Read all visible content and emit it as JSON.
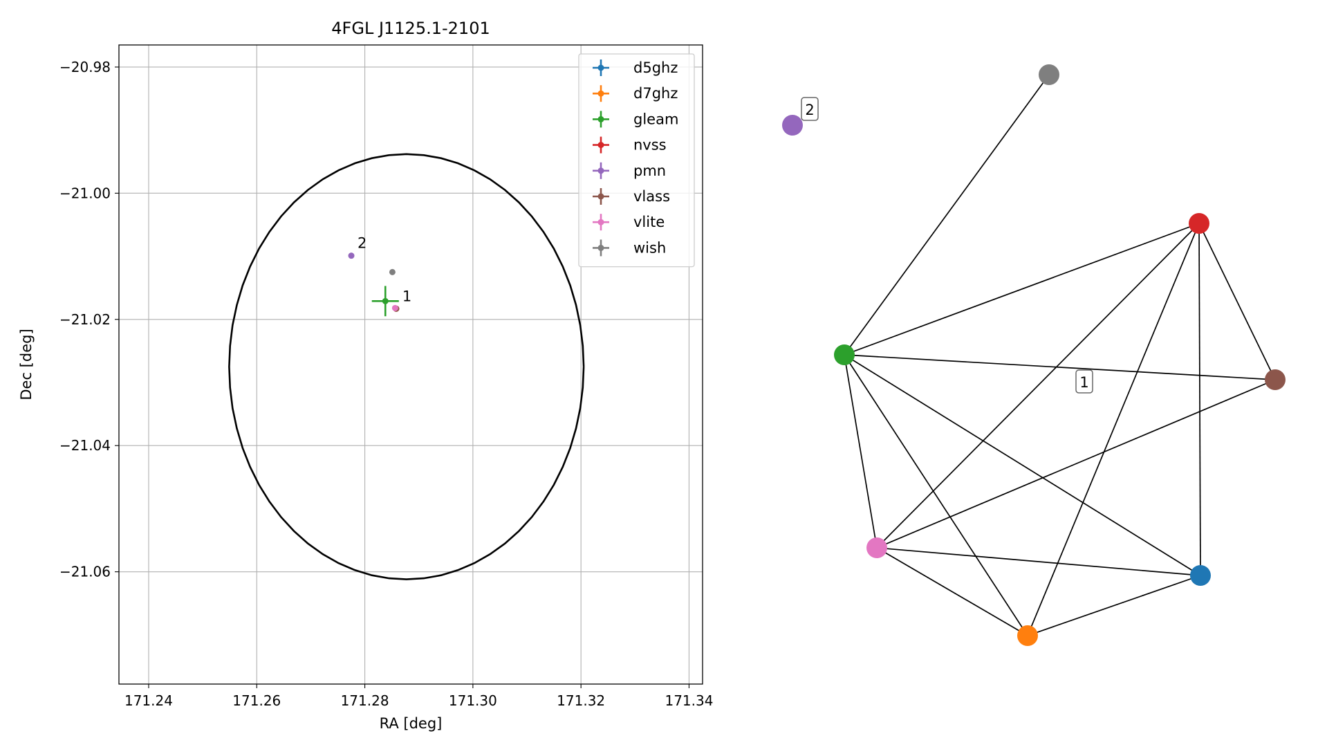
{
  "chart_data": [
    {
      "type": "scatter",
      "title": "4FGL J1125.1-2101",
      "xlabel": "RA [deg]",
      "ylabel": "Dec [deg]",
      "xlim": [
        171.2345,
        171.3425
      ],
      "ylim": [
        -21.0778,
        -20.9765
      ],
      "xticks": [
        171.24,
        171.26,
        171.28,
        171.3,
        171.32,
        171.34
      ],
      "xtick_labels": [
        "171.24",
        "171.26",
        "171.28",
        "171.30",
        "171.32",
        "171.34"
      ],
      "yticks": [
        -20.98,
        -21.0,
        -21.02,
        -21.04,
        -21.06
      ],
      "ytick_labels": [
        "−20.98",
        "−21.00",
        "−21.02",
        "−21.04",
        "−21.06"
      ],
      "grid": true,
      "legend_position": "top-right",
      "ellipse": {
        "ra_center": 171.2877,
        "dec_center": -21.0275,
        "ra_semi_axis": 0.0328,
        "dec_semi_axis": 0.0337,
        "color": "#000000"
      },
      "series": [
        {
          "name": "d5ghz",
          "color": "#1f77b4",
          "points": [
            {
              "ra": 171.2858,
              "dec": -21.0183,
              "ra_err": 0.0,
              "dec_err": 0.0
            }
          ]
        },
        {
          "name": "d7ghz",
          "color": "#ff7f0e",
          "points": [
            {
              "ra": 171.2858,
              "dec": -21.0183,
              "ra_err": 0.0,
              "dec_err": 0.0
            }
          ]
        },
        {
          "name": "gleam",
          "color": "#2ca02c",
          "points": [
            {
              "ra": 171.2838,
              "dec": -21.0171,
              "ra_err": 0.0025,
              "dec_err": 0.0024
            }
          ]
        },
        {
          "name": "nvss",
          "color": "#d62728",
          "points": [
            {
              "ra": 171.2858,
              "dec": -21.0183,
              "ra_err": 0.0,
              "dec_err": 0.0
            }
          ]
        },
        {
          "name": "pmn",
          "color": "#9467bd",
          "points": [
            {
              "ra": 171.2775,
              "dec": -21.0099,
              "ra_err": 0.0,
              "dec_err": 0.0
            }
          ]
        },
        {
          "name": "vlass",
          "color": "#8c564b",
          "points": [
            {
              "ra": 171.2858,
              "dec": -21.0183,
              "ra_err": 0.0,
              "dec_err": 0.0
            }
          ]
        },
        {
          "name": "vlite",
          "color": "#e377c2",
          "points": [
            {
              "ra": 171.2856,
              "dec": -21.0182,
              "ra_err": 0.0,
              "dec_err": 0.0
            }
          ]
        },
        {
          "name": "wish",
          "color": "#7f7f7f",
          "points": [
            {
              "ra": 171.2851,
              "dec": -21.0125,
              "ra_err": 0.0,
              "dec_err": 0.0
            }
          ]
        }
      ],
      "annotations": [
        {
          "text": "2",
          "ra": 171.2775,
          "dec": -21.0099
        },
        {
          "text": "1",
          "ra": 171.2858,
          "dec": -21.0183
        }
      ]
    },
    {
      "type": "network",
      "nodes": [
        {
          "id": "wish",
          "color": "#7f7f7f"
        },
        {
          "id": "pmn",
          "color": "#9467bd"
        },
        {
          "id": "nvss",
          "color": "#d62728"
        },
        {
          "id": "gleam",
          "color": "#2ca02c"
        },
        {
          "id": "vlass",
          "color": "#8c564b"
        },
        {
          "id": "vlite",
          "color": "#e377c2"
        },
        {
          "id": "d5ghz",
          "color": "#1f77b4"
        },
        {
          "id": "d7ghz",
          "color": "#ff7f0e"
        }
      ],
      "edges": [
        [
          "wish",
          "gleam"
        ],
        [
          "gleam",
          "nvss"
        ],
        [
          "gleam",
          "vlass"
        ],
        [
          "gleam",
          "vlite"
        ],
        [
          "gleam",
          "d7ghz"
        ],
        [
          "gleam",
          "d5ghz"
        ],
        [
          "nvss",
          "vlite"
        ],
        [
          "nvss",
          "d7ghz"
        ],
        [
          "nvss",
          "d5ghz"
        ],
        [
          "nvss",
          "vlass"
        ],
        [
          "vlite",
          "vlass"
        ],
        [
          "vlite",
          "d5ghz"
        ],
        [
          "vlite",
          "d7ghz"
        ],
        [
          "d7ghz",
          "d5ghz"
        ]
      ],
      "group_labels": [
        {
          "text": "2",
          "group": [
            "pmn"
          ]
        },
        {
          "text": "1",
          "group": [
            "gleam",
            "nvss",
            "vlass",
            "vlite",
            "d5ghz",
            "d7ghz",
            "wish"
          ]
        }
      ]
    }
  ]
}
